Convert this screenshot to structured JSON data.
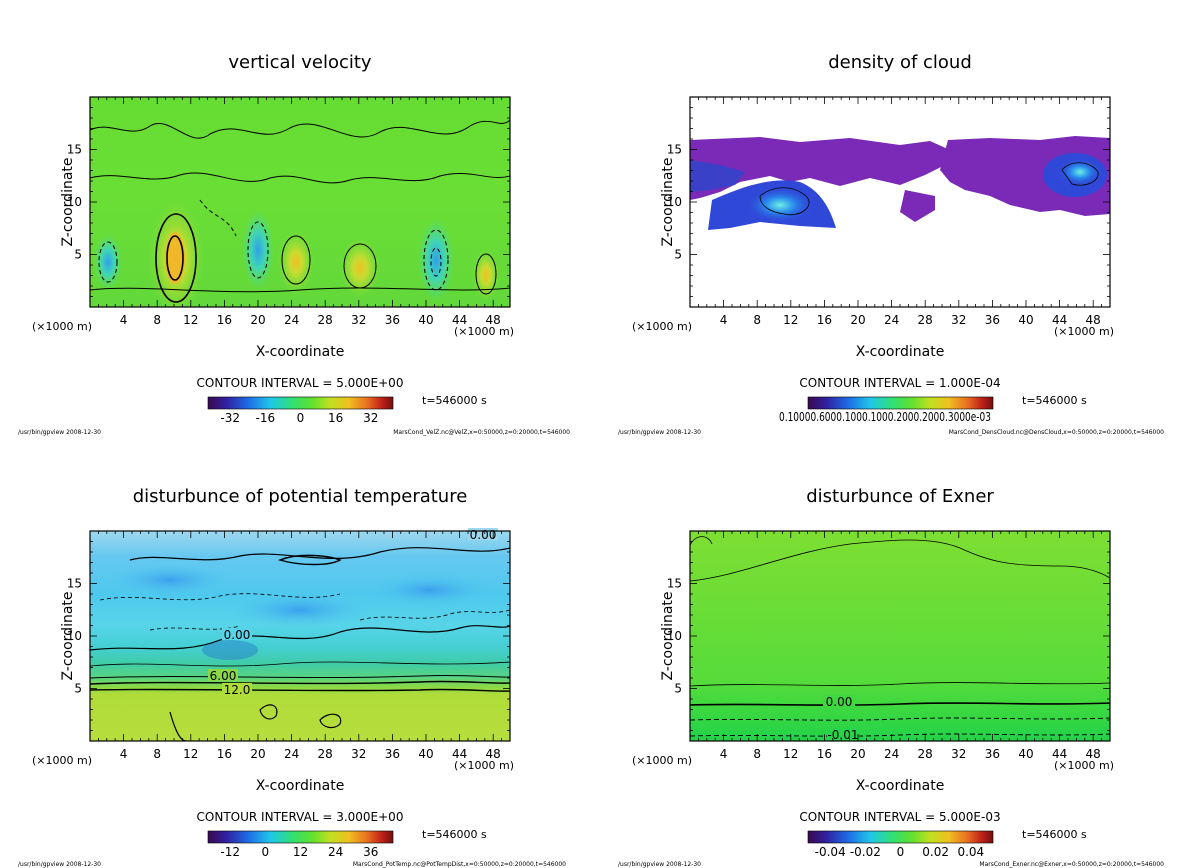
{
  "chart_data": [
    {
      "id": "vz",
      "type": "heatmap",
      "title": "vertical velocity",
      "xlabel": "X-coordinate",
      "ylabel": "Z-coordinate",
      "x_unit_left": "(×1000 m)",
      "x_unit_right": "(×1000 m)",
      "xlim": [
        0,
        50
      ],
      "ylim": [
        0,
        20
      ],
      "xticks": [
        "4",
        "8",
        "12",
        "16",
        "20",
        "24",
        "28",
        "32",
        "36",
        "40",
        "44",
        "48"
      ],
      "yticks": [
        "5",
        "10",
        "15"
      ],
      "contour_interval": "CONTOUR INTERVAL = 5.000E+00",
      "colorbar_ticks": [
        "-32",
        "-16",
        "0",
        "16",
        "32"
      ],
      "time": "t=546000 s",
      "footer_left": "/usr/bin/gpview  2008-12-30",
      "footer_right": "MarsCond_VelZ.nc@VelZ,x=0:50000,z=0:20000,t=546000",
      "contour_labels": []
    },
    {
      "id": "cloud",
      "type": "heatmap",
      "title": "density of cloud",
      "xlabel": "X-coordinate",
      "ylabel": "Z-coordinate",
      "x_unit_left": "(×1000 m)",
      "x_unit_right": "(×1000 m)",
      "xlim": [
        0,
        50
      ],
      "ylim": [
        0,
        20
      ],
      "xticks": [
        "4",
        "8",
        "12",
        "16",
        "20",
        "24",
        "28",
        "32",
        "36",
        "40",
        "44",
        "48"
      ],
      "yticks": [
        "5",
        "10",
        "15"
      ],
      "contour_interval": "CONTOUR INTERVAL = 1.000E-04",
      "colorbar_ticks": [
        "0.10000.6000.1000.1000.2000.2000.3000e-03"
      ],
      "time": "t=546000 s",
      "footer_left": "/usr/bin/gpview  2008-12-30",
      "footer_right": "MarsCond_DensCloud.nc@DensCloud,x=0:50000,z=0:20000,t=546000",
      "contour_labels": []
    },
    {
      "id": "pt",
      "type": "heatmap",
      "title": "disturbunce of potential temperature",
      "xlabel": "X-coordinate",
      "ylabel": "Z-coordinate",
      "x_unit_left": "(×1000 m)",
      "x_unit_right": "(×1000 m)",
      "xlim": [
        0,
        50
      ],
      "ylim": [
        0,
        20
      ],
      "xticks": [
        "4",
        "8",
        "12",
        "16",
        "20",
        "24",
        "28",
        "32",
        "36",
        "40",
        "44",
        "48"
      ],
      "yticks": [
        "5",
        "10",
        "15"
      ],
      "contour_interval": "CONTOUR INTERVAL = 3.000E+00",
      "colorbar_ticks": [
        "-12",
        "0",
        "12",
        "24",
        "36"
      ],
      "time": "t=546000 s",
      "footer_left": "/usr/bin/gpview  2008-12-30",
      "footer_right": "MarsCond_PotTemp.nc@PotTempDist,x=0:50000,z=0:20000,t=546000",
      "contour_labels": [
        "0.00",
        "0.00",
        "6.00",
        "12.0"
      ]
    },
    {
      "id": "exner",
      "type": "heatmap",
      "title": "disturbunce of Exner",
      "xlabel": "X-coordinate",
      "ylabel": "Z-coordinate",
      "x_unit_left": "(×1000 m)",
      "x_unit_right": "(×1000 m)",
      "xlim": [
        0,
        50
      ],
      "ylim": [
        0,
        20
      ],
      "xticks": [
        "4",
        "8",
        "12",
        "16",
        "20",
        "24",
        "28",
        "32",
        "36",
        "40",
        "44",
        "48"
      ],
      "yticks": [
        "5",
        "10",
        "15"
      ],
      "contour_interval": "CONTOUR INTERVAL = 5.000E-03",
      "colorbar_ticks": [
        "-0.04",
        "-0.02",
        "0",
        "0.02",
        "0.04"
      ],
      "time": "t=546000 s",
      "footer_left": "/usr/bin/gpview  2008-12-30",
      "footer_right": "MarsCond_Exner.nc@Exner,x=0:50000,z=0:20000,t=546000",
      "contour_labels": [
        "0.00",
        "-0.01"
      ]
    }
  ]
}
